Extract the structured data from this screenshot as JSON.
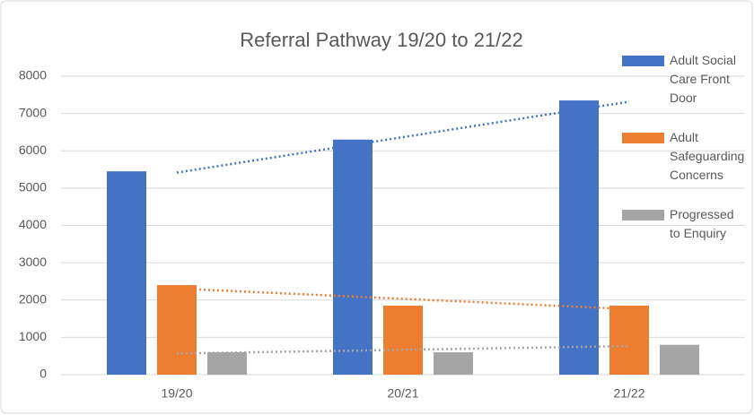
{
  "chart_data": {
    "type": "bar",
    "title": "Referral Pathway 19/20 to 21/22",
    "categories": [
      "19/20",
      "20/21",
      "21/22"
    ],
    "series": [
      {
        "name": "Adult Social Care Front Door",
        "color": "#4472c4",
        "values": [
          5450,
          6300,
          7350
        ]
      },
      {
        "name": "Adult Safeguarding Concerns",
        "color": "#ed7d31",
        "values": [
          2400,
          1850,
          1850
        ]
      },
      {
        "name": "Progressed to Enquiry",
        "color": "#a5a5a5",
        "values": [
          600,
          600,
          800
        ]
      }
    ],
    "ylim": [
      0,
      8000
    ],
    "yticks": [
      0,
      1000,
      2000,
      3000,
      4000,
      5000,
      6000,
      7000,
      8000
    ],
    "grid": true,
    "trendline": true,
    "legend": "right"
  }
}
